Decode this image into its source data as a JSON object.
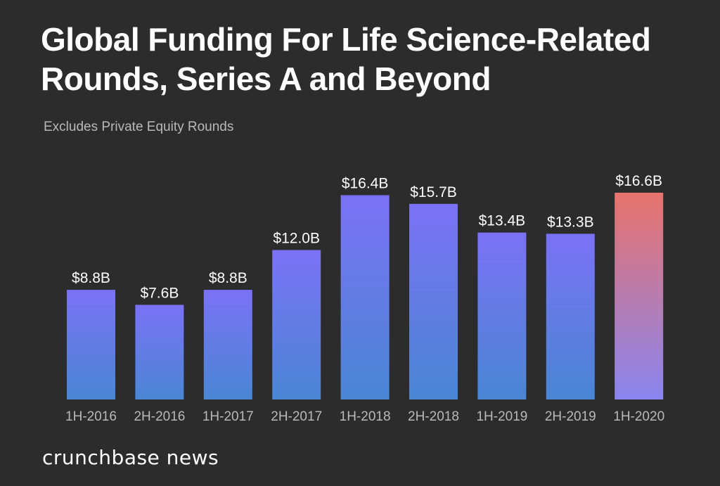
{
  "chart_data": {
    "type": "bar",
    "title": "Global Funding For Life Science-Related Rounds, Series A and Beyond",
    "subtitle": "Excludes Private Equity Rounds",
    "categories": [
      "1H-2016",
      "2H-2016",
      "1H-2017",
      "2H-2017",
      "1H-2018",
      "2H-2018",
      "1H-2019",
      "2H-2019",
      "1H-2020"
    ],
    "values": [
      8.8,
      7.6,
      8.8,
      12.0,
      16.4,
      15.7,
      13.4,
      13.3,
      16.6
    ],
    "data_labels": [
      "$8.8B",
      "$7.6B",
      "$8.8B",
      "$12.0B",
      "$16.4B",
      "$15.7B",
      "$13.4B",
      "$13.3B",
      "$16.6B"
    ],
    "unit": "USD billions",
    "ylim": [
      0,
      16.6
    ],
    "grid": false,
    "colors": {
      "default_gradient": [
        "#7a72f5",
        "#4a86d4"
      ],
      "highlight_gradient": [
        "#e8736c",
        "#8a85f0"
      ],
      "highlight_category": "1H-2020"
    }
  },
  "brand": "crunchbase news"
}
